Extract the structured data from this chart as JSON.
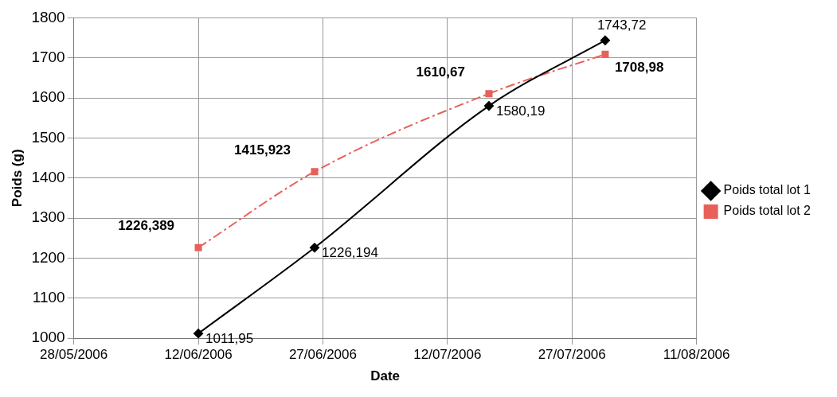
{
  "chart_data": {
    "type": "line",
    "xlabel": "Date",
    "ylabel": "Poids (g)",
    "x": [
      "2006-06-12",
      "2006-06-26",
      "2006-07-17",
      "2006-07-31"
    ],
    "series": [
      {
        "name": "Poids total lot 1",
        "color": "#000000",
        "marker": "diamond",
        "line_style": "solid",
        "values": [
          1011.95,
          1226.194,
          1580.19,
          1743.72
        ],
        "value_labels": [
          "1011,95",
          "1226,194",
          "1580,19",
          "1743,72"
        ]
      },
      {
        "name": "Poids total lot 2",
        "color": "#e8605a",
        "marker": "square",
        "line_style": "dashed",
        "values": [
          1226.389,
          1415.923,
          1610.67,
          1708.98
        ],
        "value_labels": [
          "1226,389",
          "1415,923",
          "1610,67",
          "1708,98"
        ]
      }
    ],
    "xlim": [
      "2006-05-28",
      "2006-08-11"
    ],
    "xticks": [
      {
        "value": "2006-05-28",
        "label": "28/05/2006"
      },
      {
        "value": "2006-06-12",
        "label": "12/06/2006"
      },
      {
        "value": "2006-06-27",
        "label": "27/06/2006"
      },
      {
        "value": "2006-07-12",
        "label": "12/07/2006"
      },
      {
        "value": "2006-07-27",
        "label": "27/07/2006"
      },
      {
        "value": "2006-08-11",
        "label": "11/08/2006"
      }
    ],
    "ylim": [
      1000,
      1800
    ],
    "yticks": [
      1000,
      1100,
      1200,
      1300,
      1400,
      1500,
      1600,
      1700,
      1800
    ],
    "grid": true,
    "legend": "right"
  }
}
